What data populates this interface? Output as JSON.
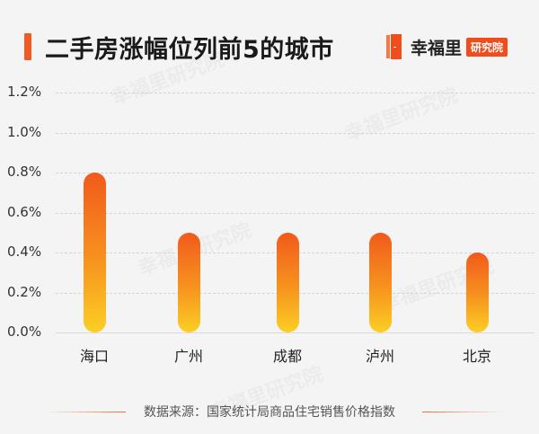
{
  "header": {
    "title": "二手房涨幅位列前5的城市",
    "logo_name": "幸福里",
    "logo_tag": "研究院",
    "watermark": "幸福里研究院"
  },
  "colors": {
    "accent": "#ef4e1c",
    "bar_top": "#f15a1c",
    "bar_mid": "#f7931e",
    "bar_bottom": "#fbcf24"
  },
  "chart_data": {
    "type": "bar",
    "title": "二手房涨幅位列前5的城市",
    "categories": [
      "海口",
      "广州",
      "成都",
      "泸州",
      "北京"
    ],
    "values": [
      0.8,
      0.5,
      0.5,
      0.5,
      0.4
    ],
    "unit": "%",
    "xlabel": "",
    "ylabel": "",
    "ylim": [
      0,
      1.2
    ],
    "yticks": [
      "0.0%",
      "0.2%",
      "0.4%",
      "0.6%",
      "0.8%",
      "1.0%",
      "1.2%"
    ],
    "grid": true,
    "legend": null
  },
  "footer": {
    "source": "数据来源：国家统计局商品住宅销售价格指数"
  }
}
